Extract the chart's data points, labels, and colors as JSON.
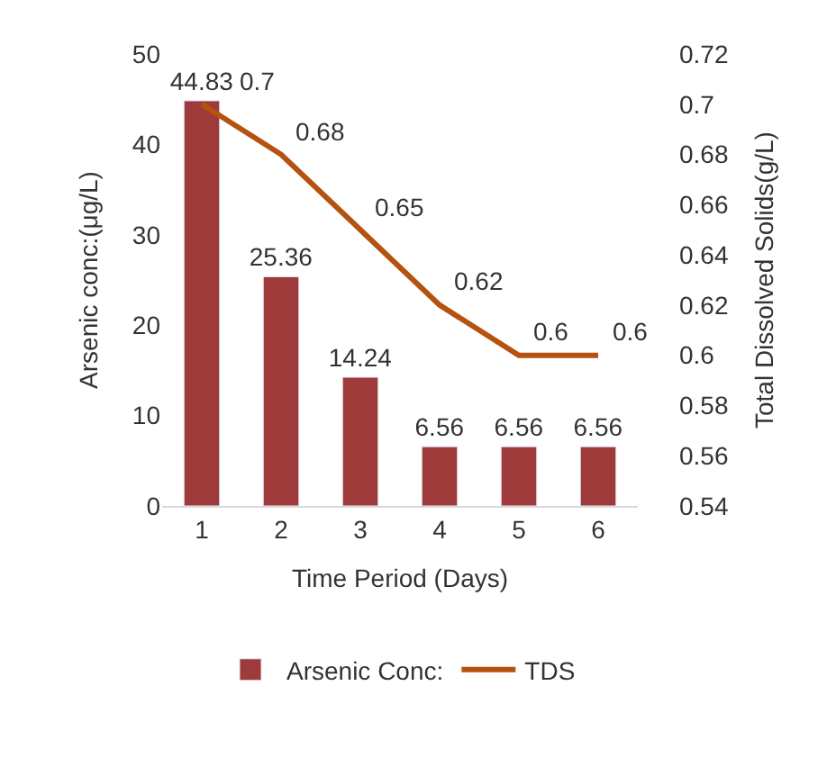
{
  "chart_data": {
    "type": "bar",
    "xlabel": "Time Period (Days)",
    "ylabel": "Arsenic conc:(μg/L)",
    "y2label": "Total Dissolved Solids(g/L)",
    "categories": [
      "1",
      "2",
      "3",
      "4",
      "5",
      "6"
    ],
    "series": [
      {
        "name": "Arsenic Conc:",
        "color": "#9e3a3a",
        "values": [
          44.83,
          25.36,
          14.24,
          6.56,
          6.56,
          6.56
        ]
      },
      {
        "name": "TDS",
        "type": "line",
        "axis": "y2",
        "color": "#b5520f",
        "values": [
          0.7,
          0.68,
          0.65,
          0.62,
          0.6,
          0.6
        ]
      }
    ],
    "ylim": [
      0,
      50
    ],
    "yticks": [
      0,
      10,
      20,
      30,
      40,
      50
    ],
    "y2lim": [
      0.54,
      0.72
    ],
    "y2ticks": [
      {
        "value": 0.54,
        "label": "0.54"
      },
      {
        "value": 0.56,
        "label": "0.56"
      },
      {
        "value": 0.58,
        "label": "0.58"
      },
      {
        "value": 0.6,
        "label": "0.6"
      },
      {
        "value": 0.62,
        "label": "0.62"
      },
      {
        "value": 0.64,
        "label": "0.64"
      },
      {
        "value": 0.66,
        "label": "0.66"
      },
      {
        "value": 0.68,
        "label": "0.68"
      },
      {
        "value": 0.7,
        "label": "0.7"
      },
      {
        "value": 0.72,
        "label": "0.72"
      }
    ],
    "data_labels": true,
    "legend": "bottom",
    "marker": "none",
    "line_style": "solid"
  }
}
